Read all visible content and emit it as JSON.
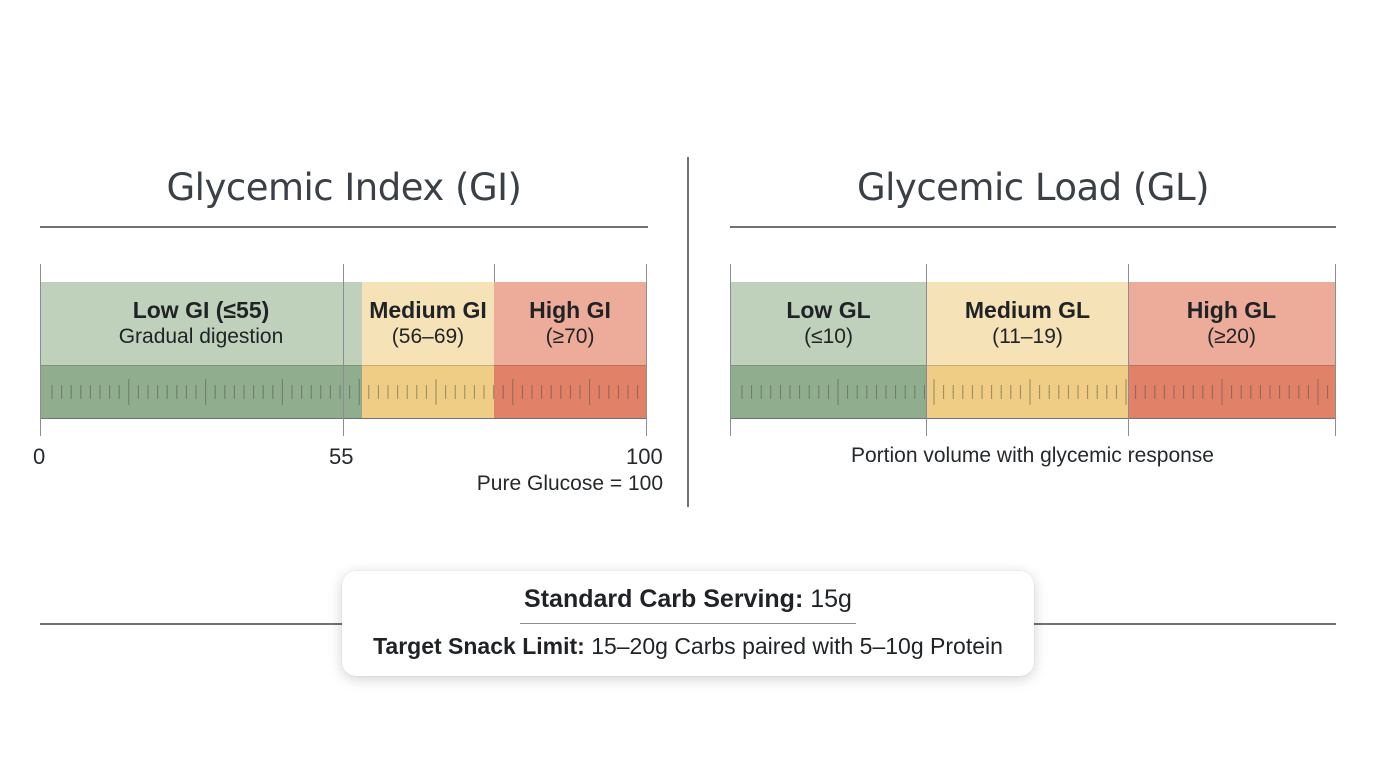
{
  "gi": {
    "title": "Glycemic Index (GI)",
    "colors": {
      "low_top": "#bfd0bb",
      "low_band": "#90ad8e",
      "medium_top": "#f6e2b7",
      "medium_band": "#efcd85",
      "high_top": "#ecac99",
      "high_band": "#e18268"
    },
    "segments": {
      "low": {
        "label": "Low GI (≤55)",
        "sub": "Gradual digestion"
      },
      "medium": {
        "label": "Medium GI",
        "sub": "(56–69)"
      },
      "high": {
        "label": "High GI",
        "sub": "(≥70)"
      }
    },
    "axis": {
      "min": "0",
      "mid": "55",
      "max": "100"
    },
    "note": "Pure Glucose = 100"
  },
  "gl": {
    "title": "Glycemic Load (GL)",
    "segments": {
      "low": {
        "label": "Low GL",
        "sub": "(≤10)"
      },
      "medium": {
        "label": "Medium GL",
        "sub": "(11–19)"
      },
      "high": {
        "label": "High GL",
        "sub": "(≥20)"
      }
    },
    "caption": "Portion volume with glycemic response"
  },
  "card": {
    "serving_label": "Standard Carb Serving:",
    "serving_value": "15g",
    "limit_label": "Target Snack Limit:",
    "limit_value": "15–20g Carbs paired with 5–10g Protein"
  }
}
